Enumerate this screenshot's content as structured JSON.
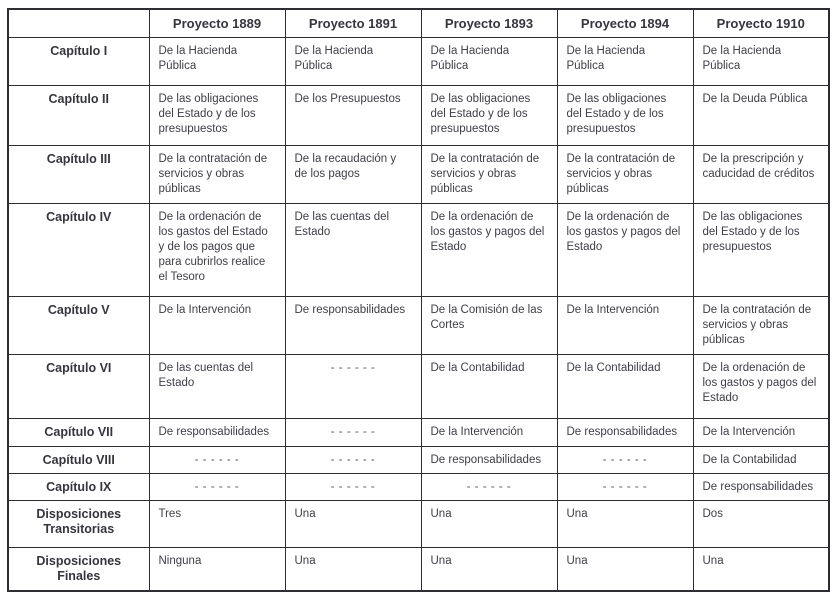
{
  "table": {
    "columns": [
      "",
      "Proyecto 1889",
      "Proyecto 1891",
      "Proyecto 1893",
      "Proyecto 1894",
      "Proyecto 1910"
    ],
    "empty_cell_marker": "- - - - - -",
    "rows": [
      {
        "label": "Capítulo I",
        "cells": [
          "De la Hacienda Pública",
          "De la Hacienda Pública",
          "De la Hacienda Pública",
          "De la Hacienda Pública",
          "De la Hacienda Pública"
        ]
      },
      {
        "label": "Capítulo II",
        "cells": [
          "De las obligaciones del Estado y de los presupuestos",
          "De los Presupuestos",
          "De las obligaciones del Estado y de los presupuestos",
          "De las obligaciones del Estado y de los presupuestos",
          "De la Deuda Pública"
        ]
      },
      {
        "label": "Capítulo III",
        "cells": [
          "De la contratación de servicios y obras públicas",
          "De la recaudación y de los pagos",
          "De la contratación de servicios y obras públicas",
          "De la contratación de servicios y obras públicas",
          "De la prescripción y caducidad de créditos"
        ]
      },
      {
        "label": "Capítulo IV",
        "cells": [
          "De la ordenación de los gastos del Estado y de los pagos que para cubrirlos realice el Tesoro",
          "De las cuentas del Estado",
          "De la ordenación de los gastos y pagos del Estado",
          "De la ordenación de los gastos y pagos del Estado",
          "De las obligaciones del Estado y de los presupuestos"
        ]
      },
      {
        "label": "Capítulo V",
        "cells": [
          "De la Intervención",
          "De responsabilidades",
          "De la Comisión de las Cortes",
          "De la Intervención",
          "De la contratación de servicios y obras públicas"
        ]
      },
      {
        "label": "Capítulo VI",
        "cells": [
          "De las cuentas del Estado",
          "- - - - - -",
          "De la Contabilidad",
          "De la Contabilidad",
          "De la ordenación de los gastos y pagos del Estado"
        ]
      },
      {
        "label": "Capítulo VII",
        "cells": [
          "De responsabilidades",
          "- - - - - -",
          "De la Intervención",
          "De responsabilidades",
          "De la Intervención"
        ]
      },
      {
        "label": "Capítulo VIII",
        "cells": [
          "- - - - - -",
          "- - - - - -",
          "De responsabilidades",
          "- - - - - -",
          "De la Contabilidad"
        ]
      },
      {
        "label": "Capítulo IX",
        "cells": [
          "- - - - - -",
          "- - - - - -",
          "- - - - - -",
          "- - - - - -",
          "De responsabilidades"
        ]
      },
      {
        "label": "Disposiciones Transitorias",
        "cells": [
          "Tres",
          "Una",
          "Una",
          "Una",
          "Dos"
        ]
      },
      {
        "label": "Disposiciones Finales",
        "cells": [
          "Ninguna",
          "Una",
          "Una",
          "Una",
          "Una"
        ]
      }
    ]
  }
}
